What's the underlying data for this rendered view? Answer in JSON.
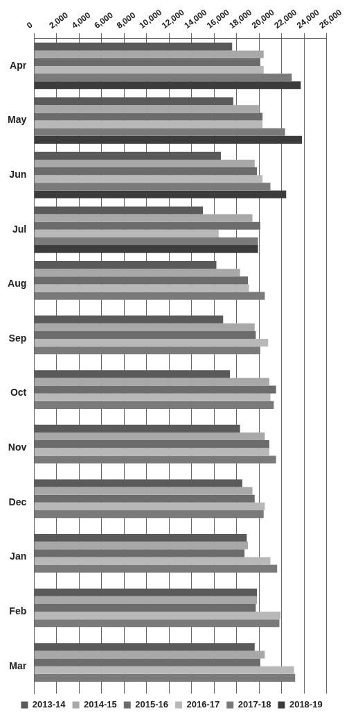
{
  "chart_data": {
    "type": "bar",
    "orientation": "horizontal",
    "categories": [
      "Apr",
      "May",
      "Jun",
      "Jul",
      "Aug",
      "Sep",
      "Oct",
      "Nov",
      "Dec",
      "Jan",
      "Feb",
      "Mar"
    ],
    "series": [
      {
        "name": "2013-14",
        "color": "#5a5a5a",
        "values": [
          17600,
          17700,
          16600,
          15000,
          16200,
          16800,
          17400,
          18300,
          18500,
          18900,
          19800,
          19600
        ]
      },
      {
        "name": "2014-15",
        "color": "#a8a8a8",
        "values": [
          20400,
          20000,
          19600,
          19400,
          18300,
          19600,
          20900,
          20500,
          19400,
          19000,
          19800,
          20500
        ]
      },
      {
        "name": "2015-16",
        "color": "#6c6c6c",
        "values": [
          20100,
          20300,
          19800,
          20100,
          19000,
          19700,
          21500,
          20900,
          19600,
          18700,
          19700,
          20100
        ]
      },
      {
        "name": "2016-17",
        "color": "#b8b8b8",
        "values": [
          20400,
          20300,
          20300,
          16400,
          19100,
          20800,
          21000,
          20900,
          20500,
          21000,
          21900,
          23100
        ]
      },
      {
        "name": "2017-18",
        "color": "#7a7a7a",
        "values": [
          22900,
          22300,
          21000,
          19900,
          20500,
          20100,
          21300,
          21500,
          20400,
          21600,
          21800,
          23200
        ]
      },
      {
        "name": "2018-19",
        "color": "#3c3c3c",
        "values": [
          23700,
          23800,
          22400,
          19900,
          null,
          null,
          null,
          null,
          null,
          null,
          null,
          null
        ]
      }
    ],
    "xlim": [
      0,
      26000
    ],
    "xticks": [
      {
        "value": 0,
        "label": "0"
      },
      {
        "value": 2000,
        "label": "2,000"
      },
      {
        "value": 4000,
        "label": "4,000"
      },
      {
        "value": 6000,
        "label": "6,000"
      },
      {
        "value": 8000,
        "label": "8,000"
      },
      {
        "value": 10000,
        "label": "10,000"
      },
      {
        "value": 12000,
        "label": "12,000"
      },
      {
        "value": 14000,
        "label": "14,000"
      },
      {
        "value": 16000,
        "label": "16,000"
      },
      {
        "value": 18000,
        "label": "18,000"
      },
      {
        "value": 20000,
        "label": "20,000"
      },
      {
        "value": 22000,
        "label": "22,000"
      },
      {
        "value": 24000,
        "label": "24,000"
      },
      {
        "value": 26000,
        "label": "26,000"
      }
    ],
    "grid": "x",
    "legend": "bottom"
  }
}
